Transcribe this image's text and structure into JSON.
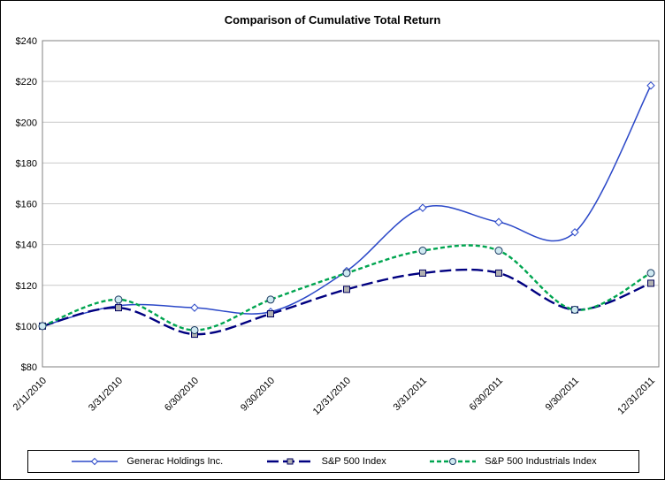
{
  "chart_data": {
    "type": "line",
    "title": "Comparison of Cumulative Total Return",
    "categories": [
      "2/11/2010",
      "3/31/2010",
      "6/30/2010",
      "9/30/2010",
      "12/31/2010",
      "3/31/2011",
      "6/30/2011",
      "9/30/2011",
      "12/31/2011"
    ],
    "series": [
      {
        "name": "Generac Holdings Inc.",
        "values": [
          100,
          110,
          109,
          107,
          127,
          158,
          151,
          146,
          218
        ],
        "color": "#2b48c8",
        "marker": "diamond",
        "marker_fill": "#ffffff",
        "marker_stroke": "#2b48c8",
        "dash": "solid"
      },
      {
        "name": "S&P 500 Index",
        "values": [
          100,
          109,
          96,
          106,
          118,
          126,
          126,
          108,
          121
        ],
        "color": "#000080",
        "marker": "square",
        "marker_fill": "#b0b0b0",
        "marker_stroke": "#000060",
        "dash": "long-dash"
      },
      {
        "name": "S&P 500 Industrials Index",
        "values": [
          100,
          113,
          98,
          113,
          126,
          137,
          137,
          108,
          126
        ],
        "color": "#00a550",
        "marker": "circle",
        "marker_fill": "#cfe9f1",
        "marker_stroke": "#17375e",
        "dash": "short-dash"
      }
    ],
    "ylim": [
      80,
      240
    ],
    "ytick_step": 20,
    "ytick_labels": [
      "$80",
      "$100",
      "$120",
      "$140",
      "$160",
      "$180",
      "$200",
      "$220",
      "$240"
    ],
    "xlabel": "",
    "ylabel": "",
    "grid": true,
    "gridline_color": "#c9c9c9",
    "axis_color": "#808080",
    "legend_position": "bottom"
  }
}
